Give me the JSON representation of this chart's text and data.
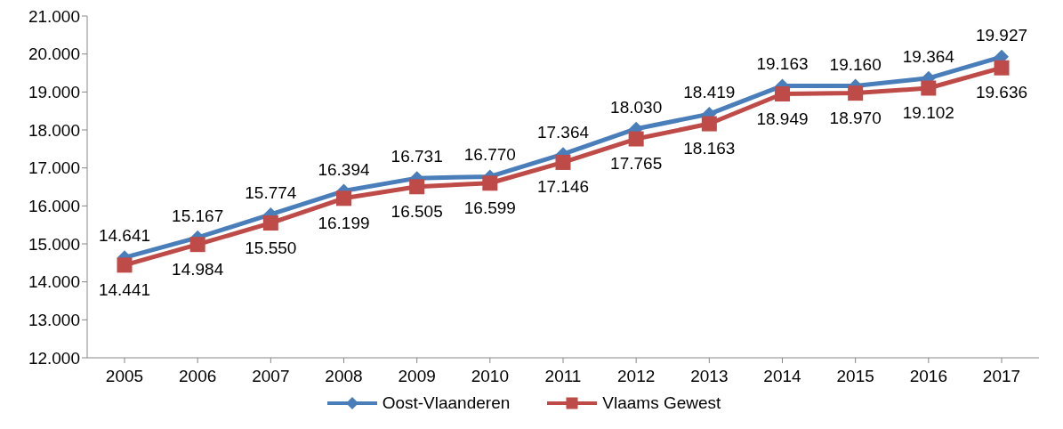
{
  "chart_data": {
    "type": "line",
    "categories": [
      "2005",
      "2006",
      "2007",
      "2008",
      "2009",
      "2010",
      "2011",
      "2012",
      "2013",
      "2014",
      "2015",
      "2016",
      "2017"
    ],
    "series": [
      {
        "name": "Oost-Vlaanderen",
        "color": "#4a7ebb",
        "marker": "diamond",
        "values": [
          14641,
          15167,
          15774,
          16394,
          16731,
          16770,
          17364,
          18030,
          18419,
          19163,
          19160,
          19364,
          19927
        ],
        "value_labels": [
          "14.641",
          "15.167",
          "15.774",
          "16.394",
          "16.731",
          "16.770",
          "17.364",
          "18.030",
          "18.419",
          "19.163",
          "19.160",
          "19.364",
          "19.927"
        ]
      },
      {
        "name": "Vlaams Gewest",
        "color": "#be4b48",
        "marker": "square",
        "values": [
          14441,
          14984,
          15550,
          16199,
          16505,
          16599,
          17146,
          17765,
          18163,
          18949,
          18970,
          19102,
          19636
        ],
        "value_labels": [
          "14.441",
          "14.984",
          "15.550",
          "16.199",
          "16.505",
          "16.599",
          "17.146",
          "17.765",
          "18.163",
          "18.949",
          "18.970",
          "19.102",
          "19.636"
        ]
      }
    ],
    "ylim": [
      12000,
      21000
    ],
    "yticks": [
      {
        "value": 12000,
        "label": "12.000"
      },
      {
        "value": 13000,
        "label": "13.000"
      },
      {
        "value": 14000,
        "label": "14.000"
      },
      {
        "value": 15000,
        "label": "15.000"
      },
      {
        "value": 16000,
        "label": "16.000"
      },
      {
        "value": 17000,
        "label": "17.000"
      },
      {
        "value": 18000,
        "label": "18.000"
      },
      {
        "value": 19000,
        "label": "19.000"
      },
      {
        "value": 20000,
        "label": "20.000"
      },
      {
        "value": 21000,
        "label": "21.000"
      }
    ],
    "grid": false,
    "legend": "bottom",
    "line_style": "solid"
  }
}
